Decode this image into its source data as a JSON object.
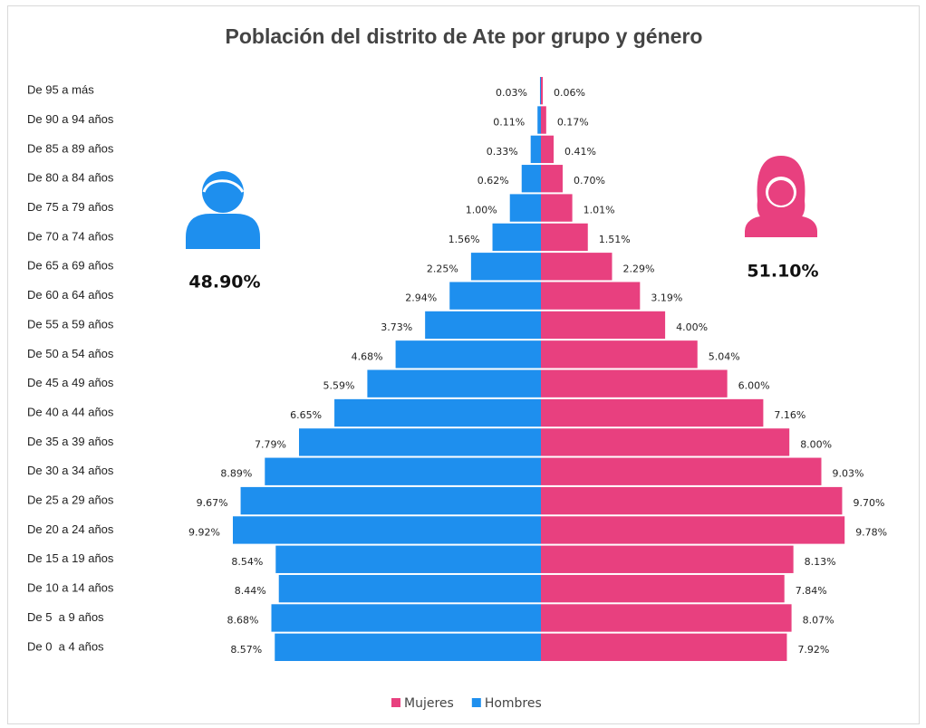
{
  "chart_data": {
    "type": "population-pyramid",
    "title": "Población del distrito de Ate por grupo y género",
    "categories": [
      "De 95 a más",
      "De 90 a 94 años",
      "De 85 a 89 años",
      "De 80 a 84 años",
      "De 75 a 79 años",
      "De 70 a 74 años",
      "De 65 a 69 años",
      "De 60 a 64 años",
      "De 55 a 59 años",
      "De 50 a 54 años",
      "De 45 a 49 años",
      "De 40 a 44 años",
      "De 35 a 39 años",
      "De 30 a 34 años",
      "De 25 a 29 años",
      "De 20 a 24 años",
      "De 15 a 19 años",
      "De 10 a 14 años",
      "De 5  a 9 años",
      "De 0  a 4 años"
    ],
    "series": [
      {
        "name": "Mujeres",
        "color": "#e8407f",
        "side": "right",
        "total": 51.1,
        "total_label": "51.10%",
        "values": [
          0.06,
          0.17,
          0.41,
          0.7,
          1.01,
          1.51,
          2.29,
          3.19,
          4.0,
          5.04,
          6.0,
          7.16,
          8.0,
          9.03,
          9.7,
          9.78,
          8.13,
          7.84,
          8.07,
          7.92
        ],
        "value_labels": [
          "0.06%",
          "0.17%",
          "0.41%",
          "0.70%",
          "1.01%",
          "1.51%",
          "2.29%",
          "3.19%",
          "4.00%",
          "5.04%",
          "6.00%",
          "7.16%",
          "8.00%",
          "9.03%",
          "9.70%",
          "9.78%",
          "8.13%",
          "7.84%",
          "8.07%",
          "7.92%"
        ]
      },
      {
        "name": "Hombres",
        "color": "#1e8fee",
        "side": "left",
        "total": 48.9,
        "total_label": "48.90%",
        "values": [
          0.03,
          0.11,
          0.33,
          0.62,
          1.0,
          1.56,
          2.25,
          2.94,
          3.73,
          4.68,
          5.59,
          6.65,
          7.79,
          8.89,
          9.67,
          9.92,
          8.54,
          8.44,
          8.68,
          8.57
        ],
        "value_labels": [
          "0.03%",
          "0.11%",
          "0.33%",
          "0.62%",
          "1.00%",
          "1.56%",
          "2.25%",
          "2.94%",
          "3.73%",
          "4.68%",
          "5.59%",
          "6.65%",
          "7.79%",
          "8.89%",
          "9.67%",
          "9.92%",
          "8.54%",
          "8.44%",
          "8.68%",
          "8.57%"
        ]
      }
    ],
    "legend": "bottom"
  }
}
